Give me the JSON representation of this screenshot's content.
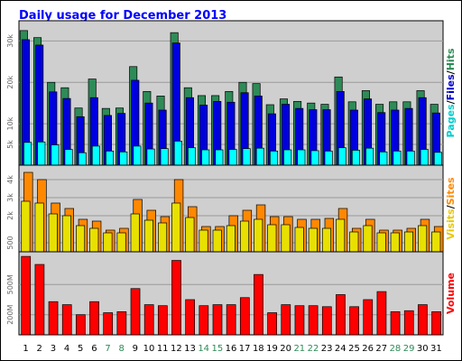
{
  "chart_data": {
    "type": "bar",
    "title": "Daily usage for December 2013",
    "days": [
      "1",
      "2",
      "3",
      "4",
      "5",
      "6",
      "7",
      "8",
      "9",
      "10",
      "11",
      "12",
      "13",
      "14",
      "15",
      "16",
      "17",
      "18",
      "19",
      "20",
      "21",
      "22",
      "23",
      "24",
      "25",
      "26",
      "27",
      "28",
      "29",
      "30",
      "31"
    ],
    "weekend_days": [
      "7",
      "8",
      "14",
      "15",
      "21",
      "22",
      "28",
      "29"
    ],
    "panels": [
      {
        "id": "traffic",
        "ylim": [
          0,
          34000
        ],
        "ticks": [
          {
            "value": 5000,
            "label": "5k"
          },
          {
            "value": 10000,
            "label": "10k"
          },
          {
            "value": 20000,
            "label": "20k"
          },
          {
            "value": 30000,
            "label": "30k"
          }
        ],
        "series": [
          {
            "name": "Hits",
            "color": "#2e8b57",
            "values": [
              32500,
              30800,
              20000,
              18700,
              13800,
              20800,
              13700,
              13800,
              23800,
              17800,
              16700,
              32000,
              18700,
              16800,
              16800,
              17800,
              20000,
              19700,
              14600,
              16000,
              15400,
              15000,
              14700,
              21300,
              15300,
              18000,
              14700,
              15300,
              15300,
              18000,
              14700
            ]
          },
          {
            "name": "Files",
            "color": "#0000dd",
            "values": [
              30300,
              29000,
              17700,
              16100,
              11700,
              16300,
              12000,
              12500,
              20500,
              15000,
              13300,
              29500,
              16300,
              14500,
              15400,
              15200,
              17500,
              16700,
              12400,
              14700,
              13700,
              13400,
              13400,
              17800,
              13300,
              16000,
              12700,
              13300,
              13700,
              16300,
              12600
            ]
          },
          {
            "name": "Pages",
            "color": "#00ffff",
            "values": [
              5500,
              5600,
              4900,
              3800,
              3000,
              4600,
              3400,
              3200,
              4600,
              3900,
              4000,
              5800,
              4200,
              3700,
              3700,
              3800,
              4000,
              4100,
              3400,
              3700,
              3700,
              3500,
              3400,
              4200,
              3600,
              4100,
              3200,
              3400,
              3400,
              3800,
              3100
            ]
          }
        ],
        "legend": [
          {
            "text": "Pages",
            "color": "#00cccc"
          },
          {
            "text": "Files",
            "color": "#0000cc"
          },
          {
            "text": "Hits",
            "color": "#2e8b57"
          }
        ]
      },
      {
        "id": "visits",
        "ylim": [
          0,
          4600
        ],
        "ticks": [
          {
            "value": 500,
            "label": "500"
          },
          {
            "value": 2000,
            "label": "2k"
          },
          {
            "value": 3000,
            "label": "3k"
          },
          {
            "value": 4000,
            "label": "4k"
          }
        ],
        "series": [
          {
            "name": "Visits",
            "color": "#ff8800",
            "values": [
              4400,
              4000,
              2700,
              2400,
              1800,
              1700,
              1200,
              1300,
              2900,
              2300,
              1950,
              4000,
              2500,
              1400,
              1400,
              2000,
              2300,
              2600,
              1950,
              1950,
              1800,
              1800,
              1850,
              2400,
              1300,
              1800,
              1200,
              1200,
              1300,
              1800,
              1400
            ]
          },
          {
            "name": "Sites",
            "color": "#e8e000",
            "values": [
              2800,
              2700,
              2100,
              2000,
              1450,
              1300,
              1050,
              1050,
              2100,
              1750,
              1600,
              2700,
              1900,
              1200,
              1200,
              1450,
              1700,
              1800,
              1500,
              1500,
              1350,
              1300,
              1300,
              1800,
              1100,
              1450,
              1050,
              1050,
              1100,
              1450,
              1100
            ]
          }
        ],
        "legend": [
          {
            "text": "Visits",
            "color": "#e8c800"
          },
          {
            "text": "Sites",
            "color": "#ff8800"
          }
        ]
      },
      {
        "id": "volume",
        "ylim": [
          0,
          790
        ],
        "ticks": [
          {
            "value": 200,
            "label": "200M"
          },
          {
            "value": 500,
            "label": "500M"
          }
        ],
        "series": [
          {
            "name": "Volume",
            "color": "#ff0000",
            "values": [
              780,
              700,
              330,
              300,
              200,
              330,
              220,
              230,
              460,
              300,
              290,
              740,
              350,
              290,
              300,
              300,
              370,
              600,
              220,
              300,
              290,
              290,
              280,
              400,
              280,
              350,
              430,
              230,
              240,
              300,
              230
            ]
          }
        ],
        "legend": [
          {
            "text": "Volume",
            "color": "#ff0000"
          }
        ]
      }
    ]
  }
}
